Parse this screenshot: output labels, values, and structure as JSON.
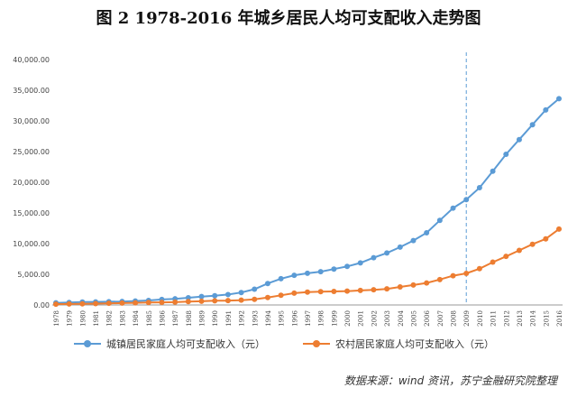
{
  "header": {
    "title": "图 2 1978-2016 年城乡居民人均可支配收入走势图"
  },
  "source_note": "数据来源：wind 资讯，苏宁金融研究院整理",
  "chart_data": {
    "type": "line",
    "title": "图 2 1978-2016 年城乡居民人均可支配收入走势图",
    "xlabel": "",
    "ylabel": "",
    "ylim": [
      0,
      40000
    ],
    "yticks": [
      "0.00",
      "5,000.00",
      "10,000.00",
      "15,000.00",
      "20,000.00",
      "25,000.00",
      "30,000.00",
      "35,000.00",
      "40,000.00"
    ],
    "grid": false,
    "legend_position": "bottom",
    "reference_line_x": "2009",
    "categories": [
      "1978",
      "1979",
      "1980",
      "1981",
      "1982",
      "1983",
      "1984",
      "1985",
      "1986",
      "1987",
      "1988",
      "1989",
      "1990",
      "1991",
      "1992",
      "1993",
      "1994",
      "1995",
      "1996",
      "1997",
      "1998",
      "1999",
      "2000",
      "2001",
      "2002",
      "2003",
      "2004",
      "2005",
      "2006",
      "2007",
      "2008",
      "2009",
      "2010",
      "2011",
      "2012",
      "2013",
      "2014",
      "2015",
      "2016"
    ],
    "series": [
      {
        "name": "城镇居民家庭人均可支配收入（元）",
        "color": "#5B9BD5",
        "values": [
          343,
          405,
          478,
          500,
          535,
          565,
          652,
          739,
          900,
          1002,
          1180,
          1374,
          1510,
          1700,
          2027,
          2577,
          3496,
          4283,
          4839,
          5160,
          5425,
          5854,
          6280,
          6860,
          7703,
          8472,
          9422,
          10493,
          11759,
          13786,
          15781,
          17175,
          19109,
          21810,
          24565,
          26955,
          29381,
          31790,
          33616
        ]
      },
      {
        "name": "农村居民家庭人均可支配收入（元）",
        "color": "#ED7D31",
        "values": [
          134,
          160,
          191,
          223,
          270,
          310,
          355,
          398,
          424,
          463,
          545,
          602,
          686,
          709,
          784,
          922,
          1221,
          1578,
          1926,
          2090,
          2162,
          2210,
          2253,
          2366,
          2476,
          2622,
          2936,
          3255,
          3587,
          4140,
          4761,
          5153,
          5919,
          6977,
          7917,
          8896,
          9892,
          10772,
          12363
        ]
      }
    ]
  }
}
